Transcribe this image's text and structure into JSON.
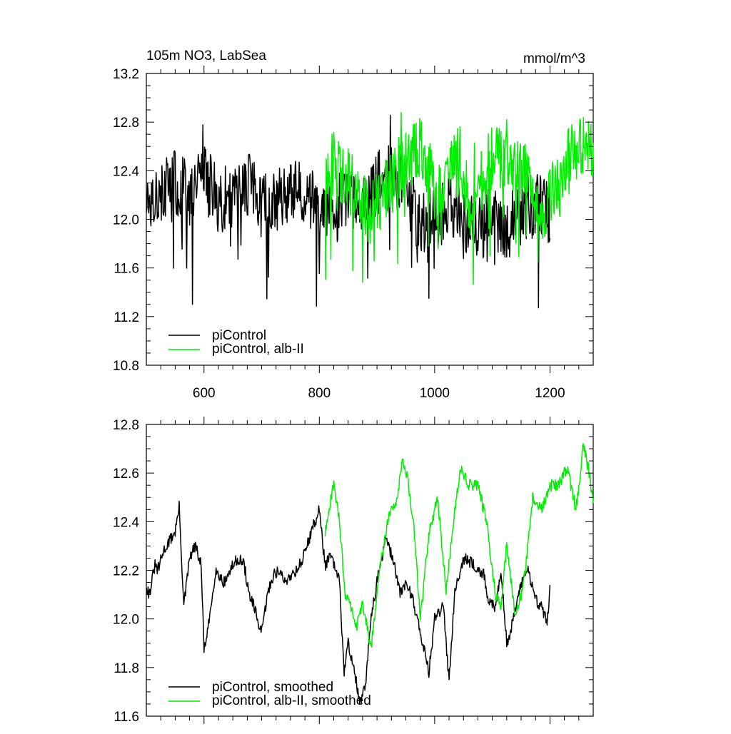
{
  "chart_data": [
    {
      "type": "line",
      "title": "105m NO3, LabSea",
      "units": "mmol/m^3",
      "xlim": [
        500,
        1275
      ],
      "ylim": [
        10.8,
        13.2
      ],
      "xticks": [
        600,
        800,
        1000,
        1200
      ],
      "yticks": [
        10.8,
        11.2,
        11.6,
        12.0,
        12.4,
        12.8,
        13.2
      ],
      "xtick_labels": [
        "600",
        "800",
        "1000",
        "1200"
      ],
      "ytick_labels": [
        "10.8",
        "11.2",
        "11.6",
        "12.0",
        "12.4",
        "12.8",
        "13.2"
      ],
      "grid": false,
      "legend": "bottom-left",
      "series": [
        {
          "name": "piControl",
          "color": "#000000",
          "x_start": 500,
          "x_end": 1200,
          "x_step": 25,
          "values": [
            12.2,
            12.25,
            12.3,
            12.2,
            12.35,
            12.15,
            12.2,
            12.3,
            12.1,
            12.15,
            12.2,
            12.25,
            12.1,
            12.05,
            12.2,
            12.15,
            12.3,
            12.35,
            12.3,
            11.95,
            12.0,
            12.1,
            11.95,
            11.9,
            12.0,
            11.95,
            12.0,
            12.15,
            12.05
          ]
        },
        {
          "name": "piControl, alb-II",
          "color": "#00ee00",
          "x_start": 810,
          "x_end": 1275,
          "x_step": 15,
          "values": [
            12.35,
            12.45,
            12.4,
            12.3,
            12.15,
            12.05,
            12.1,
            12.25,
            12.35,
            12.45,
            12.55,
            12.6,
            12.4,
            12.2,
            12.3,
            12.45,
            12.3,
            12.1,
            12.3,
            12.5,
            12.5,
            12.55,
            12.45,
            12.4,
            12.2,
            12.0,
            12.15,
            12.35,
            12.5,
            12.55,
            12.6,
            12.5
          ]
        }
      ]
    },
    {
      "type": "line",
      "xlim": [
        500,
        1275
      ],
      "ylim": [
        11.6,
        12.8
      ],
      "xticks": [
        600,
        800,
        1000,
        1200
      ],
      "yticks": [
        11.6,
        11.8,
        12.0,
        12.2,
        12.4,
        12.6,
        12.8
      ],
      "ytick_labels": [
        "11.6",
        "11.8",
        "12.0",
        "12.2",
        "12.4",
        "12.6",
        "12.8"
      ],
      "grid": false,
      "legend": "bottom-left",
      "series": [
        {
          "name": "piControl, smoothed",
          "color": "#000000",
          "x": [
            500,
            505,
            515,
            520,
            530,
            540,
            550,
            557,
            565,
            575,
            585,
            595,
            600,
            605,
            612,
            620,
            635,
            650,
            660,
            670,
            678,
            685,
            700,
            710,
            720,
            730,
            740,
            750,
            760,
            770,
            785,
            800,
            810,
            820,
            835,
            843,
            850,
            860,
            870,
            880,
            890,
            900,
            915,
            930,
            940,
            950,
            960,
            975,
            990,
            1000,
            1015,
            1025,
            1035,
            1050,
            1070,
            1085,
            1095,
            1105,
            1115,
            1125,
            1135,
            1145,
            1160,
            1175,
            1185,
            1195,
            1200
          ],
          "values": [
            12.14,
            12.1,
            12.22,
            12.2,
            12.28,
            12.32,
            12.36,
            12.46,
            12.05,
            12.25,
            12.3,
            12.22,
            11.88,
            11.92,
            12.05,
            12.2,
            12.15,
            12.22,
            12.25,
            12.22,
            12.1,
            12.06,
            11.94,
            12.1,
            12.18,
            12.2,
            12.15,
            12.18,
            12.2,
            12.24,
            12.35,
            12.45,
            12.22,
            12.26,
            12.15,
            11.78,
            11.9,
            11.8,
            11.65,
            11.72,
            12.02,
            12.15,
            12.33,
            12.23,
            12.1,
            12.15,
            12.1,
            11.95,
            11.78,
            12.0,
            12.05,
            11.75,
            12.12,
            12.25,
            12.22,
            12.18,
            12.06,
            12.05,
            12.2,
            11.9,
            11.98,
            12.1,
            12.22,
            12.08,
            12.05,
            11.99,
            12.12
          ]
        },
        {
          "name": "piControl, alb-II, smoothed",
          "color": "#00ee00",
          "x": [
            810,
            815,
            825,
            835,
            845,
            855,
            865,
            875,
            890,
            905,
            920,
            935,
            945,
            955,
            965,
            975,
            990,
            1005,
            1020,
            1035,
            1045,
            1060,
            1075,
            1090,
            1105,
            1115,
            1125,
            1140,
            1155,
            1170,
            1185,
            1200,
            1215,
            1230,
            1245,
            1258,
            1268,
            1275
          ],
          "values": [
            12.35,
            12.42,
            12.56,
            12.4,
            12.1,
            12.05,
            11.97,
            12.07,
            11.88,
            12.22,
            12.42,
            12.5,
            12.66,
            12.55,
            12.35,
            12.0,
            12.35,
            12.5,
            12.12,
            12.45,
            12.62,
            12.55,
            12.55,
            12.4,
            12.1,
            12.05,
            12.3,
            12.0,
            12.15,
            12.5,
            12.45,
            12.55,
            12.55,
            12.62,
            12.45,
            12.72,
            12.6,
            12.48
          ]
        }
      ]
    }
  ]
}
